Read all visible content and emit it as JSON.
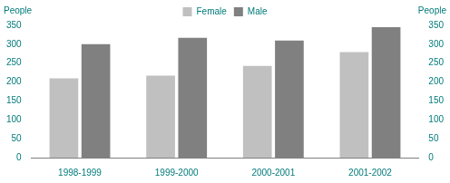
{
  "chart_data": {
    "type": "bar",
    "y_label": "People",
    "y2_label": "People",
    "categories": [
      "1998-1999",
      "1999-2000",
      "2000-2001",
      "2001-2002"
    ],
    "series": [
      {
        "name": "Female",
        "color": "#c0c0c0",
        "values": [
          210,
          217,
          243,
          279
        ]
      },
      {
        "name": "Male",
        "color": "#808080",
        "values": [
          300,
          317,
          310,
          345
        ]
      }
    ],
    "ylim": [
      0,
      350
    ],
    "yticks": [
      0,
      50,
      100,
      150,
      200,
      250,
      300,
      350
    ],
    "y2lim": [
      0,
      350
    ],
    "y2ticks": [
      0,
      50,
      100,
      150,
      200,
      250,
      300,
      350
    ],
    "grid": false,
    "legend": "top"
  }
}
